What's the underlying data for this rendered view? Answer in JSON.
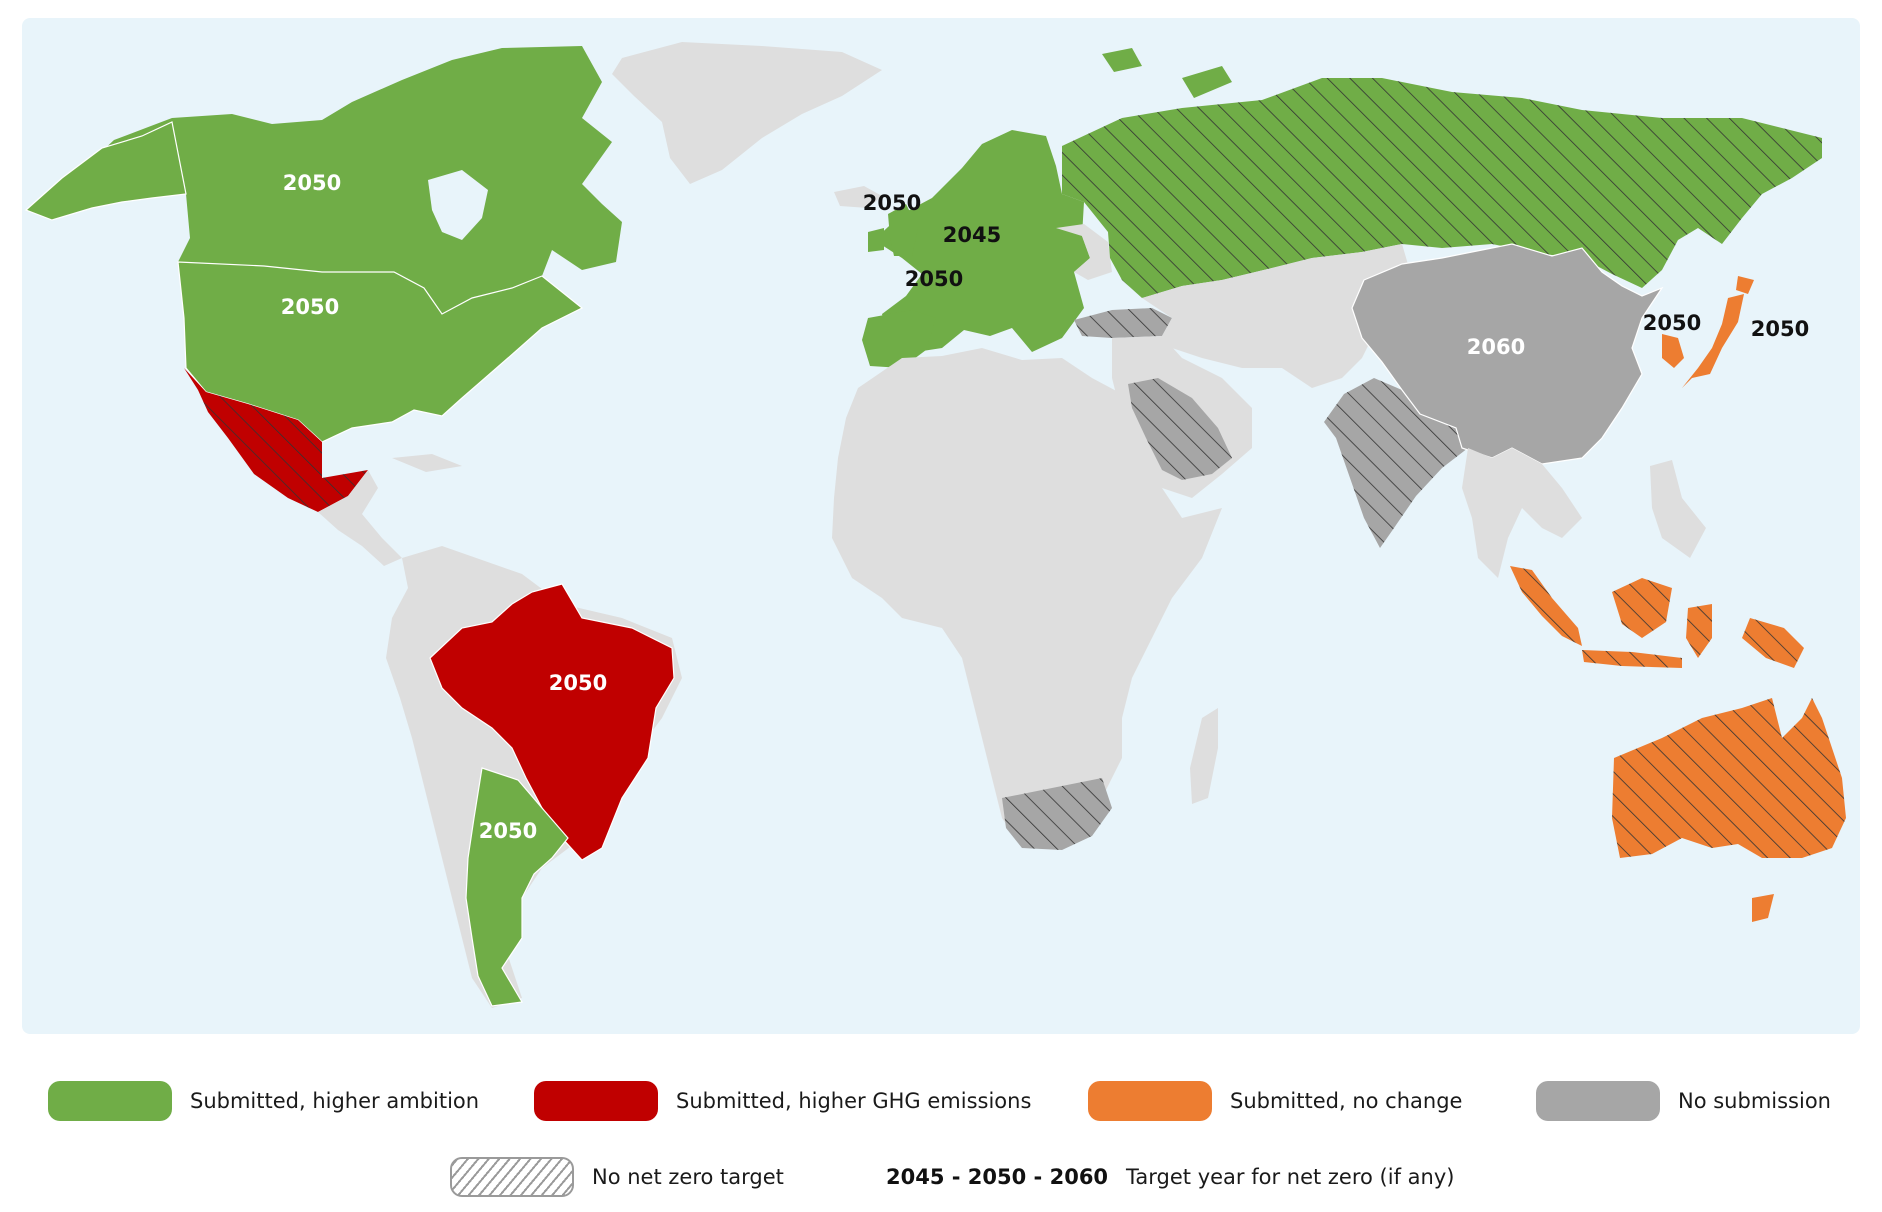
{
  "colors": {
    "ocean": "#e8f4fa",
    "land_default": "#dedede",
    "border": "#ffffff",
    "higher_ambition": "#70ad47",
    "higher_ghg": "#c00000",
    "no_change": "#ed7d31",
    "no_submission": "#a6a6a6",
    "hatch_line": "#333333"
  },
  "map": {
    "labels": [
      {
        "id": "canada",
        "text": "2050",
        "color": "white"
      },
      {
        "id": "usa",
        "text": "2050",
        "color": "white"
      },
      {
        "id": "uk",
        "text": "2050",
        "color": "dark"
      },
      {
        "id": "germany",
        "text": "2045",
        "color": "dark"
      },
      {
        "id": "france",
        "text": "2050",
        "color": "dark"
      },
      {
        "id": "china",
        "text": "2060",
        "color": "white"
      },
      {
        "id": "korea",
        "text": "2050",
        "color": "dark"
      },
      {
        "id": "japan",
        "text": "2050",
        "color": "dark"
      },
      {
        "id": "brazil",
        "text": "2050",
        "color": "white"
      },
      {
        "id": "argentina",
        "text": "2050",
        "color": "white"
      }
    ]
  },
  "legend": {
    "higher_ambition": "Submitted, higher ambition",
    "higher_ghg": "Submitted, higher GHG emissions",
    "no_change": "Submitted, no change",
    "no_submission": "No submission",
    "no_net_zero": "No net zero target",
    "years": {
      "y1": "2045",
      "sep1": " - ",
      "y2": "2050",
      "sep2": " - ",
      "y3": "2060"
    },
    "years_caption": "Target year for net zero (if any)"
  }
}
